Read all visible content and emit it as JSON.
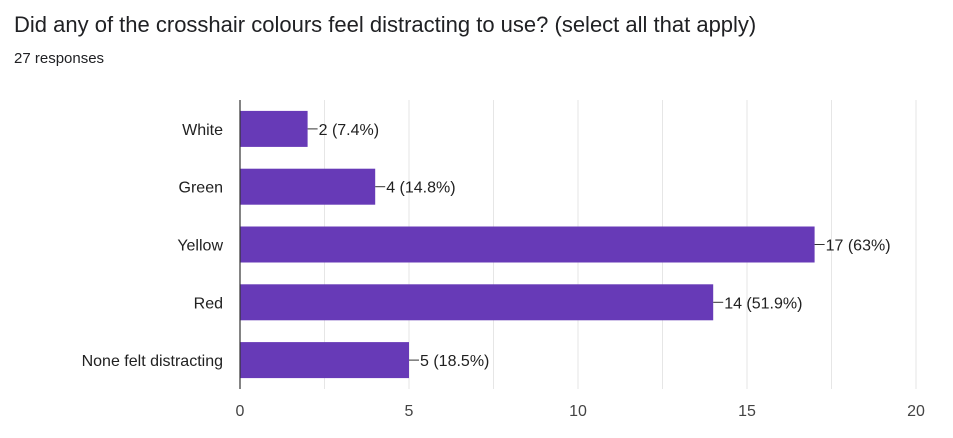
{
  "header": {
    "title": "Did any of the crosshair colours feel distracting to use? (select all that apply)",
    "responses": "27 responses"
  },
  "colors": {
    "bar": "#673ab7",
    "grid": "#e6e6e6",
    "axis": "#333333"
  },
  "chart_data": {
    "type": "bar",
    "orientation": "horizontal",
    "title": "Did any of the crosshair colours feel distracting to use? (select all that apply)",
    "categories": [
      "White",
      "Green",
      "Yellow",
      "Red",
      "None felt distracting"
    ],
    "values": [
      2,
      4,
      17,
      14,
      5
    ],
    "data_labels": [
      "2 (7.4%)",
      "4 (14.8%)",
      "17 (63%)",
      "14 (51.9%)",
      "5 (18.5%)"
    ],
    "xlim": [
      0,
      20
    ],
    "xticks": [
      0,
      5,
      10,
      15,
      20
    ],
    "grid": true,
    "legend": "none"
  }
}
